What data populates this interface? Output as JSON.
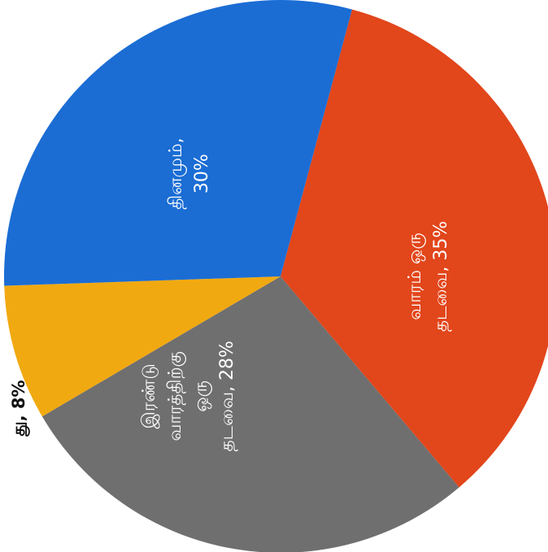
{
  "chart_data": {
    "type": "pie",
    "slices": [
      {
        "label_lines": [
          "வாரம் ஒரு",
          "தடவை, 35%"
        ],
        "value": 35,
        "color": "#e2461b"
      },
      {
        "label_lines": [
          "இரண்டு",
          "வாரத்திற்கு",
          "ஒரு",
          "தடவை, 28%"
        ],
        "value": 28,
        "color": "#6f6f6f"
      },
      {
        "label_lines": [
          "து, 8%"
        ],
        "value": 8,
        "color": "#f1a911"
      },
      {
        "label_lines": [
          "தினமும்,",
          "30%"
        ],
        "value": 30,
        "color": "#1b6dd4"
      }
    ]
  }
}
